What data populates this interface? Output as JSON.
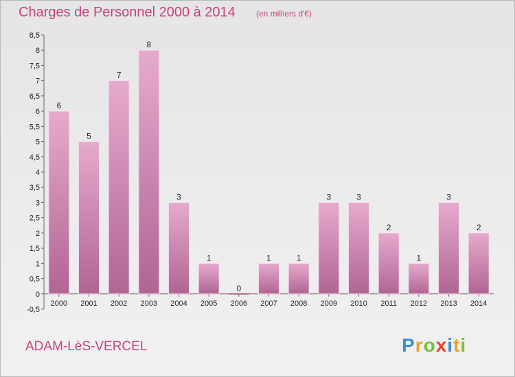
{
  "header": {
    "title": "Charges de Personnel 2000 à 2014",
    "subtitle": "(en milliers d'€)"
  },
  "footer": {
    "town": "ADAM-LèS-VERCEL",
    "brand_letters": [
      "P",
      "r",
      "o",
      "x",
      "i",
      "t",
      "i"
    ],
    "brand_colors": [
      "#3a8fd0",
      "#f0a020",
      "#7cbf3a",
      "#e8452c",
      "#3a8fd0",
      "#f0a020",
      "#7cbf3a"
    ]
  },
  "colors": {
    "bar_top": "#e6aace",
    "bar_bottom": "#b06592",
    "accent": "#c9407f"
  },
  "chart_data": {
    "type": "bar",
    "title": "Charges de Personnel 2000 à 2014",
    "subtitle": "(en milliers d'€)",
    "xlabel": "",
    "ylabel": "",
    "categories": [
      "2000",
      "2001",
      "2002",
      "2003",
      "2004",
      "2005",
      "2006",
      "2007",
      "2008",
      "2009",
      "2010",
      "2011",
      "2012",
      "2013",
      "2014"
    ],
    "values": [
      6,
      5,
      7,
      8,
      3,
      1,
      0,
      1,
      1,
      3,
      3,
      2,
      1,
      3,
      2
    ],
    "data_labels": [
      "6",
      "5",
      "7",
      "8",
      "3",
      "1",
      "0",
      "1",
      "1",
      "3",
      "3",
      "2",
      "1",
      "3",
      "2"
    ],
    "ylim": [
      -0.5,
      8.5
    ],
    "y_ticks": [
      "-0,5",
      "0",
      "0,5",
      "1",
      "1,5",
      "2",
      "2,5",
      "3",
      "3,5",
      "4",
      "4,5",
      "5",
      "5,5",
      "6",
      "6,5",
      "7",
      "7,5",
      "8",
      "8,5"
    ],
    "grid": false,
    "legend": "none"
  }
}
